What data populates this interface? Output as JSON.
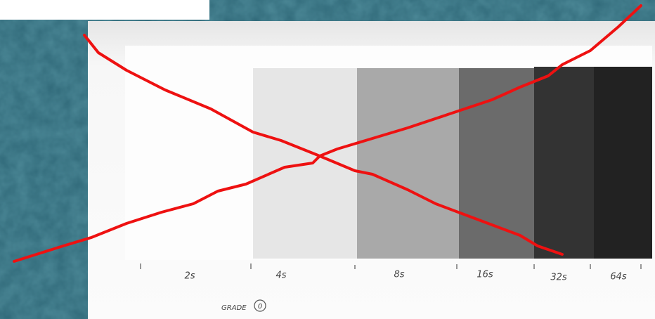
{
  "strip": {
    "labels": [
      "2s",
      "4s",
      "8s",
      "16s",
      "32s",
      "64s"
    ]
  },
  "grade": {
    "label": "GRADE",
    "number": "0"
  }
}
